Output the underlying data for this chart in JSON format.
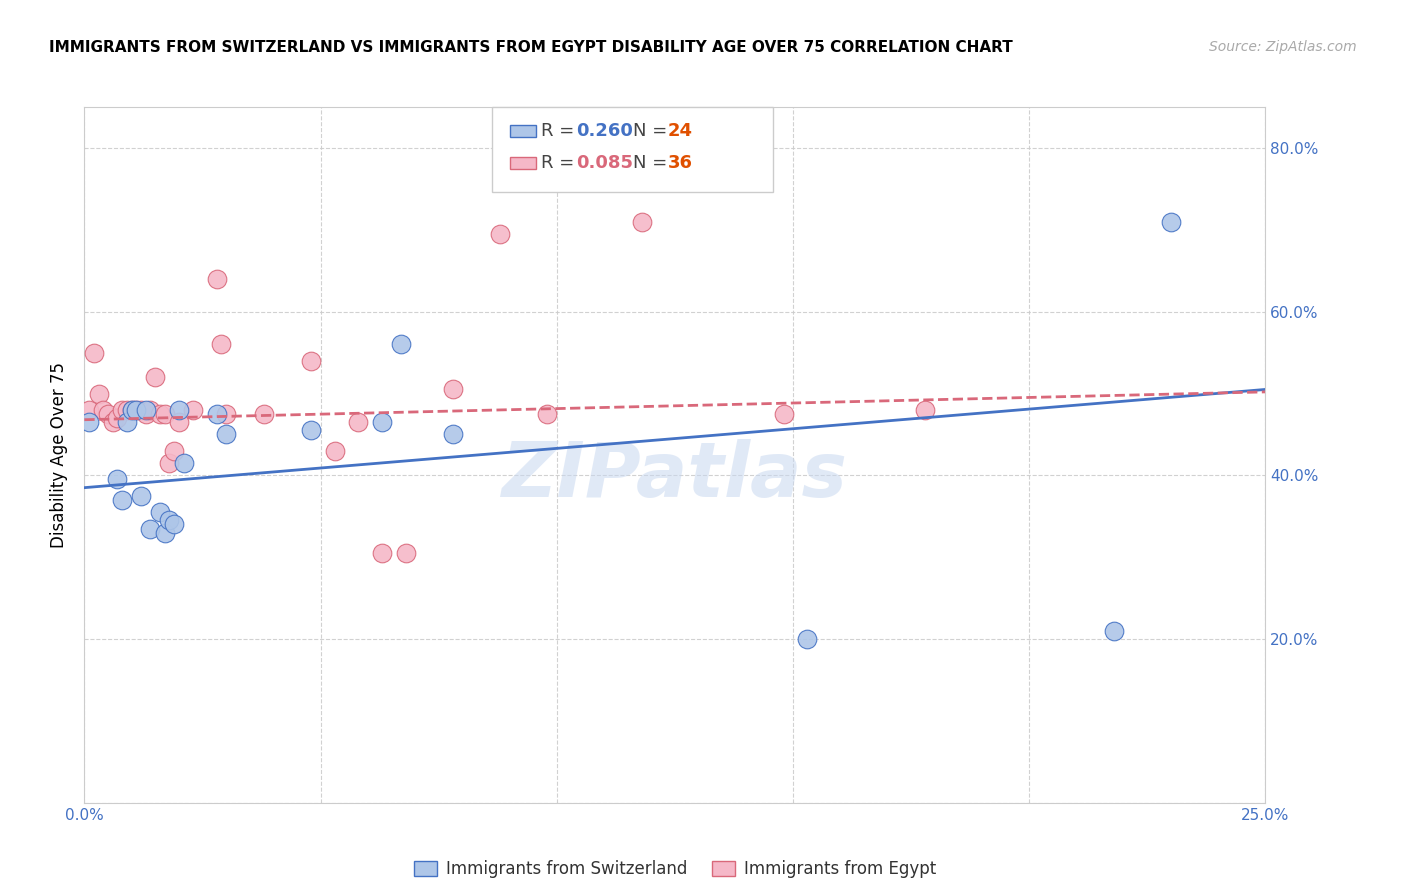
{
  "title": "IMMIGRANTS FROM SWITZERLAND VS IMMIGRANTS FROM EGYPT DISABILITY AGE OVER 75 CORRELATION CHART",
  "source": "Source: ZipAtlas.com",
  "ylabel": "Disability Age Over 75",
  "x_min": 0.0,
  "x_max": 0.25,
  "y_min": 0.0,
  "y_max": 0.85,
  "x_ticks": [
    0.0,
    0.05,
    0.1,
    0.15,
    0.2,
    0.25
  ],
  "x_tick_labels": [
    "0.0%",
    "",
    "",
    "",
    "",
    "25.0%"
  ],
  "y_ticks": [
    0.0,
    0.2,
    0.4,
    0.6,
    0.8
  ],
  "y_tick_labels_right": [
    "",
    "20.0%",
    "40.0%",
    "60.0%",
    "80.0%"
  ],
  "legend1_R": "0.260",
  "legend1_N": "24",
  "legend2_R": "0.085",
  "legend2_N": "36",
  "color_swiss": "#aec6e8",
  "color_egypt": "#f5b8c8",
  "line_color_swiss": "#4472c4",
  "line_color_egypt": "#d9687a",
  "color_N": "#e05000",
  "watermark": "ZIPatlas",
  "swiss_x": [
    0.001,
    0.007,
    0.008,
    0.009,
    0.01,
    0.011,
    0.012,
    0.013,
    0.014,
    0.016,
    0.017,
    0.018,
    0.019,
    0.02,
    0.021,
    0.028,
    0.03,
    0.048,
    0.063,
    0.067,
    0.078,
    0.153,
    0.218,
    0.23
  ],
  "swiss_y": [
    0.465,
    0.395,
    0.37,
    0.465,
    0.48,
    0.48,
    0.375,
    0.48,
    0.335,
    0.355,
    0.33,
    0.345,
    0.34,
    0.48,
    0.415,
    0.475,
    0.45,
    0.455,
    0.465,
    0.56,
    0.45,
    0.2,
    0.21,
    0.71
  ],
  "egypt_x": [
    0.001,
    0.002,
    0.003,
    0.004,
    0.005,
    0.006,
    0.007,
    0.008,
    0.009,
    0.01,
    0.011,
    0.012,
    0.013,
    0.014,
    0.015,
    0.016,
    0.017,
    0.018,
    0.019,
    0.02,
    0.023,
    0.028,
    0.029,
    0.03,
    0.038,
    0.048,
    0.053,
    0.058,
    0.063,
    0.068,
    0.078,
    0.088,
    0.098,
    0.118,
    0.148,
    0.178
  ],
  "egypt_y": [
    0.48,
    0.55,
    0.5,
    0.48,
    0.475,
    0.465,
    0.47,
    0.48,
    0.48,
    0.48,
    0.48,
    0.48,
    0.475,
    0.48,
    0.52,
    0.475,
    0.475,
    0.415,
    0.43,
    0.465,
    0.48,
    0.64,
    0.56,
    0.475,
    0.475,
    0.54,
    0.43,
    0.465,
    0.305,
    0.305,
    0.505,
    0.695,
    0.475,
    0.71,
    0.475,
    0.48
  ],
  "swiss_line_x": [
    0.0,
    0.25
  ],
  "swiss_line_y": [
    0.385,
    0.505
  ],
  "egypt_line_x": [
    0.0,
    0.25
  ],
  "egypt_line_y": [
    0.468,
    0.502
  ],
  "bottom_legend": [
    "Immigrants from Switzerland",
    "Immigrants from Egypt"
  ]
}
